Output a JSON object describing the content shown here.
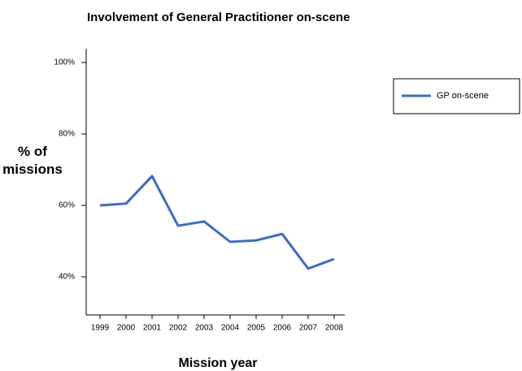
{
  "chart_data": {
    "type": "line",
    "title": "Involvement of General Practitioner on-scene",
    "x_label": "Mission year",
    "y_label": "% of missions",
    "categories": [
      "1999",
      "2000",
      "2001",
      "2002",
      "2003",
      "2004",
      "2005",
      "2006",
      "2007",
      "2008"
    ],
    "series": [
      {
        "name": "GP on-scene",
        "color": "#3a6bc9",
        "values": [
          60,
          60.5,
          68.2,
          54.3,
          55.5,
          49.8,
          50.2,
          52,
          42.3,
          45
        ]
      }
    ],
    "ylim": [
      30,
      100
    ],
    "yticks": [
      {
        "value": 40,
        "label": "40%"
      },
      {
        "value": 60,
        "label": "60%"
      },
      {
        "value": 80,
        "label": "80%"
      },
      {
        "value": 100,
        "label": "100%"
      }
    ],
    "legend": "upper right"
  }
}
